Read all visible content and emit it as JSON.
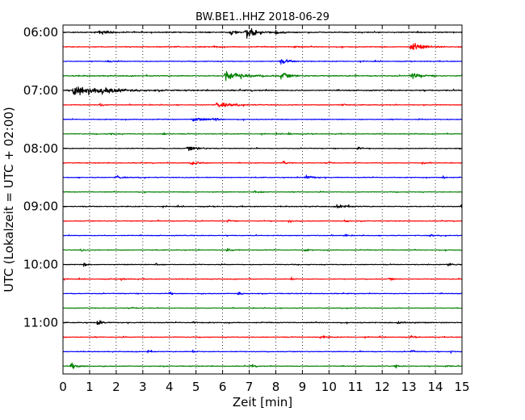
{
  "chart_data": {
    "type": "line",
    "title": "BW.BE1..HHZ 2018-06-29",
    "xlabel": "Zeit  [min]",
    "ylabel": "UTC (Lokalzeit = UTC + 02:00)",
    "xlim": [
      0,
      15
    ],
    "x_ticks": [
      "0",
      "1",
      "2",
      "3",
      "4",
      "5",
      "6",
      "7",
      "8",
      "9",
      "10",
      "11",
      "12",
      "13",
      "14",
      "15"
    ],
    "y_tick_labels": [
      "06:00",
      "07:00",
      "08:00",
      "09:00",
      "10:00",
      "11:00"
    ],
    "trace_colors": [
      "#000000",
      "#ff0000",
      "#0000ff",
      "#008000"
    ],
    "grid": "vertical dotted",
    "traces": [
      {
        "time": "06:00",
        "color": "black",
        "noise": 0.8,
        "events": [
          [
            1.4,
            0.45,
            0.3
          ],
          [
            6.3,
            0.4,
            0.25
          ],
          [
            6.9,
            0.95,
            0.35
          ],
          [
            8.0,
            0.3,
            0.2
          ]
        ]
      },
      {
        "time": "06:15",
        "color": "red",
        "noise": 0.7,
        "events": [
          [
            5.7,
            0.3,
            0.1
          ],
          [
            8.7,
            0.35,
            0.1
          ],
          [
            13.1,
            0.7,
            0.4
          ]
        ]
      },
      {
        "time": "06:30",
        "color": "blue",
        "noise": 0.6,
        "events": [
          [
            1.7,
            0.3,
            0.1
          ],
          [
            8.2,
            0.45,
            0.3
          ]
        ]
      },
      {
        "time": "06:45",
        "color": "green",
        "noise": 0.8,
        "events": [
          [
            6.1,
            0.85,
            0.6
          ],
          [
            8.2,
            0.55,
            0.3
          ],
          [
            13.1,
            0.55,
            0.3
          ]
        ]
      },
      {
        "time": "07:00",
        "color": "black",
        "noise": 0.9,
        "events": [
          [
            0.4,
            1.0,
            0.9
          ],
          [
            1.5,
            0.3,
            0.4
          ]
        ]
      },
      {
        "time": "07:15",
        "color": "red",
        "noise": 0.6,
        "events": [
          [
            1.4,
            0.3,
            0.1
          ],
          [
            5.8,
            0.5,
            0.5
          ],
          [
            10.5,
            0.25,
            0.1
          ]
        ]
      },
      {
        "time": "07:30",
        "color": "blue",
        "noise": 0.6,
        "events": [
          [
            4.9,
            0.6,
            0.3
          ],
          [
            5.7,
            0.25,
            0.15
          ]
        ]
      },
      {
        "time": "07:45",
        "color": "green",
        "noise": 0.6,
        "events": [
          [
            1.8,
            0.25,
            0.1
          ],
          [
            3.8,
            0.25,
            0.1
          ],
          [
            8.5,
            0.25,
            0.1
          ]
        ]
      },
      {
        "time": "08:00",
        "color": "black",
        "noise": 0.6,
        "events": [
          [
            4.7,
            0.4,
            0.35
          ],
          [
            11.1,
            0.3,
            0.1
          ]
        ]
      },
      {
        "time": "08:15",
        "color": "red",
        "noise": 0.6,
        "events": [
          [
            4.8,
            0.4,
            0.3
          ],
          [
            8.3,
            0.3,
            0.1
          ],
          [
            10.0,
            0.3,
            0.1
          ],
          [
            13.5,
            0.25,
            0.1
          ]
        ]
      },
      {
        "time": "08:30",
        "color": "blue",
        "noise": 0.6,
        "events": [
          [
            2.0,
            0.3,
            0.2
          ],
          [
            9.1,
            0.45,
            0.25
          ],
          [
            14.3,
            0.25,
            0.1
          ]
        ]
      },
      {
        "time": "08:45",
        "color": "green",
        "noise": 0.6,
        "events": [
          [
            7.2,
            0.3,
            0.2
          ]
        ]
      },
      {
        "time": "09:00",
        "color": "black",
        "noise": 0.7,
        "events": [
          [
            10.3,
            0.5,
            0.3
          ],
          [
            15.0,
            0.6,
            0.3
          ]
        ]
      },
      {
        "time": "09:15",
        "color": "red",
        "noise": 0.6,
        "events": [
          [
            6.2,
            0.25,
            0.1
          ],
          [
            8.5,
            0.3,
            0.1
          ],
          [
            10.6,
            0.25,
            0.1
          ]
        ]
      },
      {
        "time": "09:30",
        "color": "blue",
        "noise": 0.6,
        "events": [
          [
            10.6,
            0.25,
            0.1
          ],
          [
            13.8,
            0.25,
            0.1
          ]
        ]
      },
      {
        "time": "09:45",
        "color": "green",
        "noise": 0.6,
        "events": [
          [
            0.7,
            0.25,
            0.1
          ],
          [
            6.2,
            0.3,
            0.15
          ],
          [
            9.1,
            0.25,
            0.1
          ]
        ]
      },
      {
        "time": "10:00",
        "color": "black",
        "noise": 0.6,
        "events": [
          [
            0.8,
            0.3,
            0.1
          ],
          [
            3.5,
            0.3,
            0.1
          ],
          [
            14.5,
            0.3,
            0.3
          ]
        ]
      },
      {
        "time": "10:15",
        "color": "red",
        "noise": 0.6,
        "events": [
          [
            2.2,
            0.25,
            0.1
          ],
          [
            8.6,
            0.3,
            0.1
          ],
          [
            12.3,
            0.25,
            0.1
          ]
        ]
      },
      {
        "time": "10:30",
        "color": "blue",
        "noise": 0.6,
        "events": [
          [
            4.0,
            0.25,
            0.1
          ],
          [
            6.6,
            0.3,
            0.1
          ]
        ]
      },
      {
        "time": "10:45",
        "color": "green",
        "noise": 0.55,
        "events": [
          [
            2.6,
            0.25,
            0.1
          ]
        ]
      },
      {
        "time": "11:00",
        "color": "black",
        "noise": 0.7,
        "events": [
          [
            1.3,
            0.45,
            0.2
          ],
          [
            4.9,
            0.25,
            0.1
          ],
          [
            12.6,
            0.3,
            0.3
          ]
        ]
      },
      {
        "time": "11:15",
        "color": "red",
        "noise": 0.6,
        "events": [
          [
            9.7,
            0.35,
            0.2
          ],
          [
            13.1,
            0.25,
            0.1
          ]
        ]
      },
      {
        "time": "11:30",
        "color": "blue",
        "noise": 0.6,
        "events": [
          [
            3.2,
            0.3,
            0.1
          ],
          [
            4.9,
            0.25,
            0.1
          ],
          [
            13.1,
            0.3,
            0.1
          ],
          [
            14.6,
            0.25,
            0.1
          ]
        ]
      },
      {
        "time": "11:45",
        "color": "green",
        "noise": 0.6,
        "events": [
          [
            0.3,
            0.5,
            0.25
          ],
          [
            7.1,
            0.3,
            0.1
          ],
          [
            12.5,
            0.3,
            0.1
          ],
          [
            14.4,
            0.25,
            0.1
          ]
        ]
      }
    ]
  }
}
